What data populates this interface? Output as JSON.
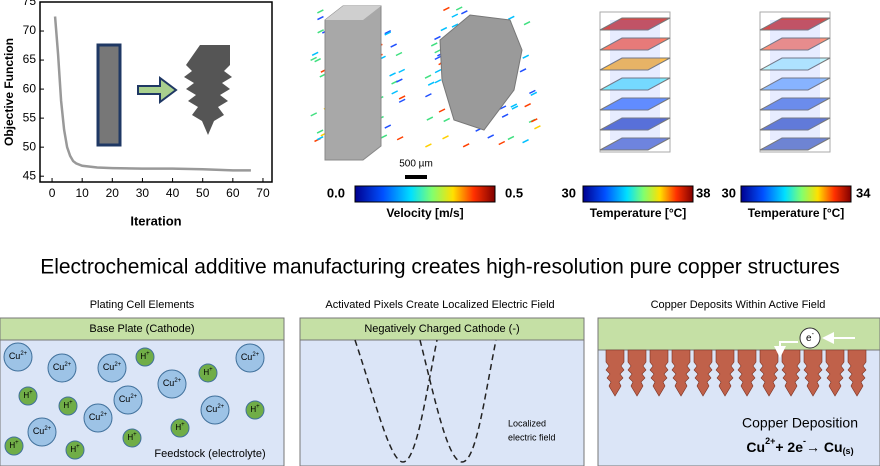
{
  "chart_data": {
    "type": "line",
    "xlabel": "Iteration",
    "ylabel": "Objective Function",
    "x": [
      1,
      2,
      3,
      4,
      5,
      6,
      7,
      8,
      10,
      15,
      20,
      30,
      40,
      50,
      60,
      66
    ],
    "series": [
      {
        "color": "#999999",
        "values": [
          72.5,
          66,
          58,
          53,
          50,
          48.5,
          47.6,
          47.2,
          46.8,
          46.5,
          46.4,
          46.3,
          46.3,
          46.2,
          46.0,
          46.0
        ]
      }
    ],
    "xlim": [
      -4,
      73
    ],
    "ylim": [
      44,
      75
    ],
    "xticks": [
      0,
      10,
      20,
      30,
      40,
      50,
      60,
      70
    ],
    "yticks": [
      45,
      50,
      55,
      60,
      65,
      70,
      75
    ]
  },
  "scale_bar": "500 µm",
  "colorbars": [
    {
      "min": "0.0",
      "max": "0.5",
      "label": "Velocity [m/s]"
    },
    {
      "min": "30",
      "max": "38",
      "label": "Temperature [°C]"
    },
    {
      "min": "30",
      "max": "34",
      "label": "Temperature [°C]"
    }
  ],
  "headline": "Electrochemical additive manufacturing creates high-resolution pure copper structures",
  "panels": [
    {
      "title": "Plating Cell Elements",
      "bar": "Base Plate (Cathode)",
      "ions": [
        {
          "symbol": "Cu",
          "charge": "2+"
        },
        {
          "symbol": "Cu",
          "charge": "2+"
        },
        {
          "symbol": "Cu",
          "charge": "2+"
        },
        {
          "symbol": "Cu",
          "charge": "2+"
        },
        {
          "symbol": "Cu",
          "charge": "2+"
        },
        {
          "symbol": "Cu",
          "charge": "2+"
        },
        {
          "symbol": "Cu",
          "charge": "2+"
        },
        {
          "symbol": "Cu",
          "charge": "2+"
        },
        {
          "symbol": "Cu",
          "charge": "2+"
        },
        {
          "symbol": "H",
          "charge": "+"
        },
        {
          "symbol": "H",
          "charge": "+"
        },
        {
          "symbol": "H",
          "charge": "+"
        },
        {
          "symbol": "H",
          "charge": "+"
        },
        {
          "symbol": "H",
          "charge": "+"
        },
        {
          "symbol": "H",
          "charge": "+"
        },
        {
          "symbol": "H",
          "charge": "+"
        },
        {
          "symbol": "H",
          "charge": "+"
        },
        {
          "symbol": "H",
          "charge": "+"
        }
      ],
      "note": "Feedstock (electrolyte)"
    },
    {
      "title": "Activated Pixels Create Localized Electric Field",
      "bar": "Negatively Charged Cathode (-)",
      "note": [
        "Localized",
        "electric field"
      ]
    },
    {
      "title": "Copper Deposits Within Active Field",
      "electron": {
        "symbol": "e",
        "charge": "-"
      },
      "label": "Copper Deposition",
      "equation": [
        "Cu",
        "2+",
        "+ 2e",
        "-",
        "→ Cu",
        "(s)"
      ]
    }
  ]
}
